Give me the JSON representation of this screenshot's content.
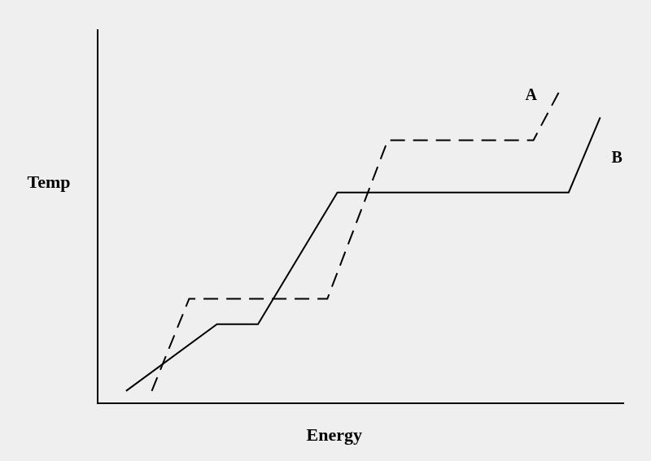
{
  "chart_data": {
    "type": "line",
    "x_label": "Energy",
    "y_label": "Temp",
    "xlim": [
      0,
      100
    ],
    "ylim": [
      0,
      100
    ],
    "tick_labels": false,
    "grid": false,
    "series": [
      {
        "name": "A",
        "color": "#000000",
        "line_style": "dashed",
        "x": [
          10.3,
          17.4,
          43.7,
          55.2,
          82.9,
          87.9
        ],
        "values": [
          3.3,
          28.0,
          28.0,
          70.5,
          70.5,
          83.8
        ]
      },
      {
        "name": "B",
        "color": "#000000",
        "line_style": "solid",
        "x": [
          5.4,
          22.7,
          30.5,
          45.6,
          89.6,
          95.6
        ],
        "values": [
          3.3,
          21.2,
          21.2,
          56.5,
          56.5,
          76.6
        ]
      }
    ]
  }
}
